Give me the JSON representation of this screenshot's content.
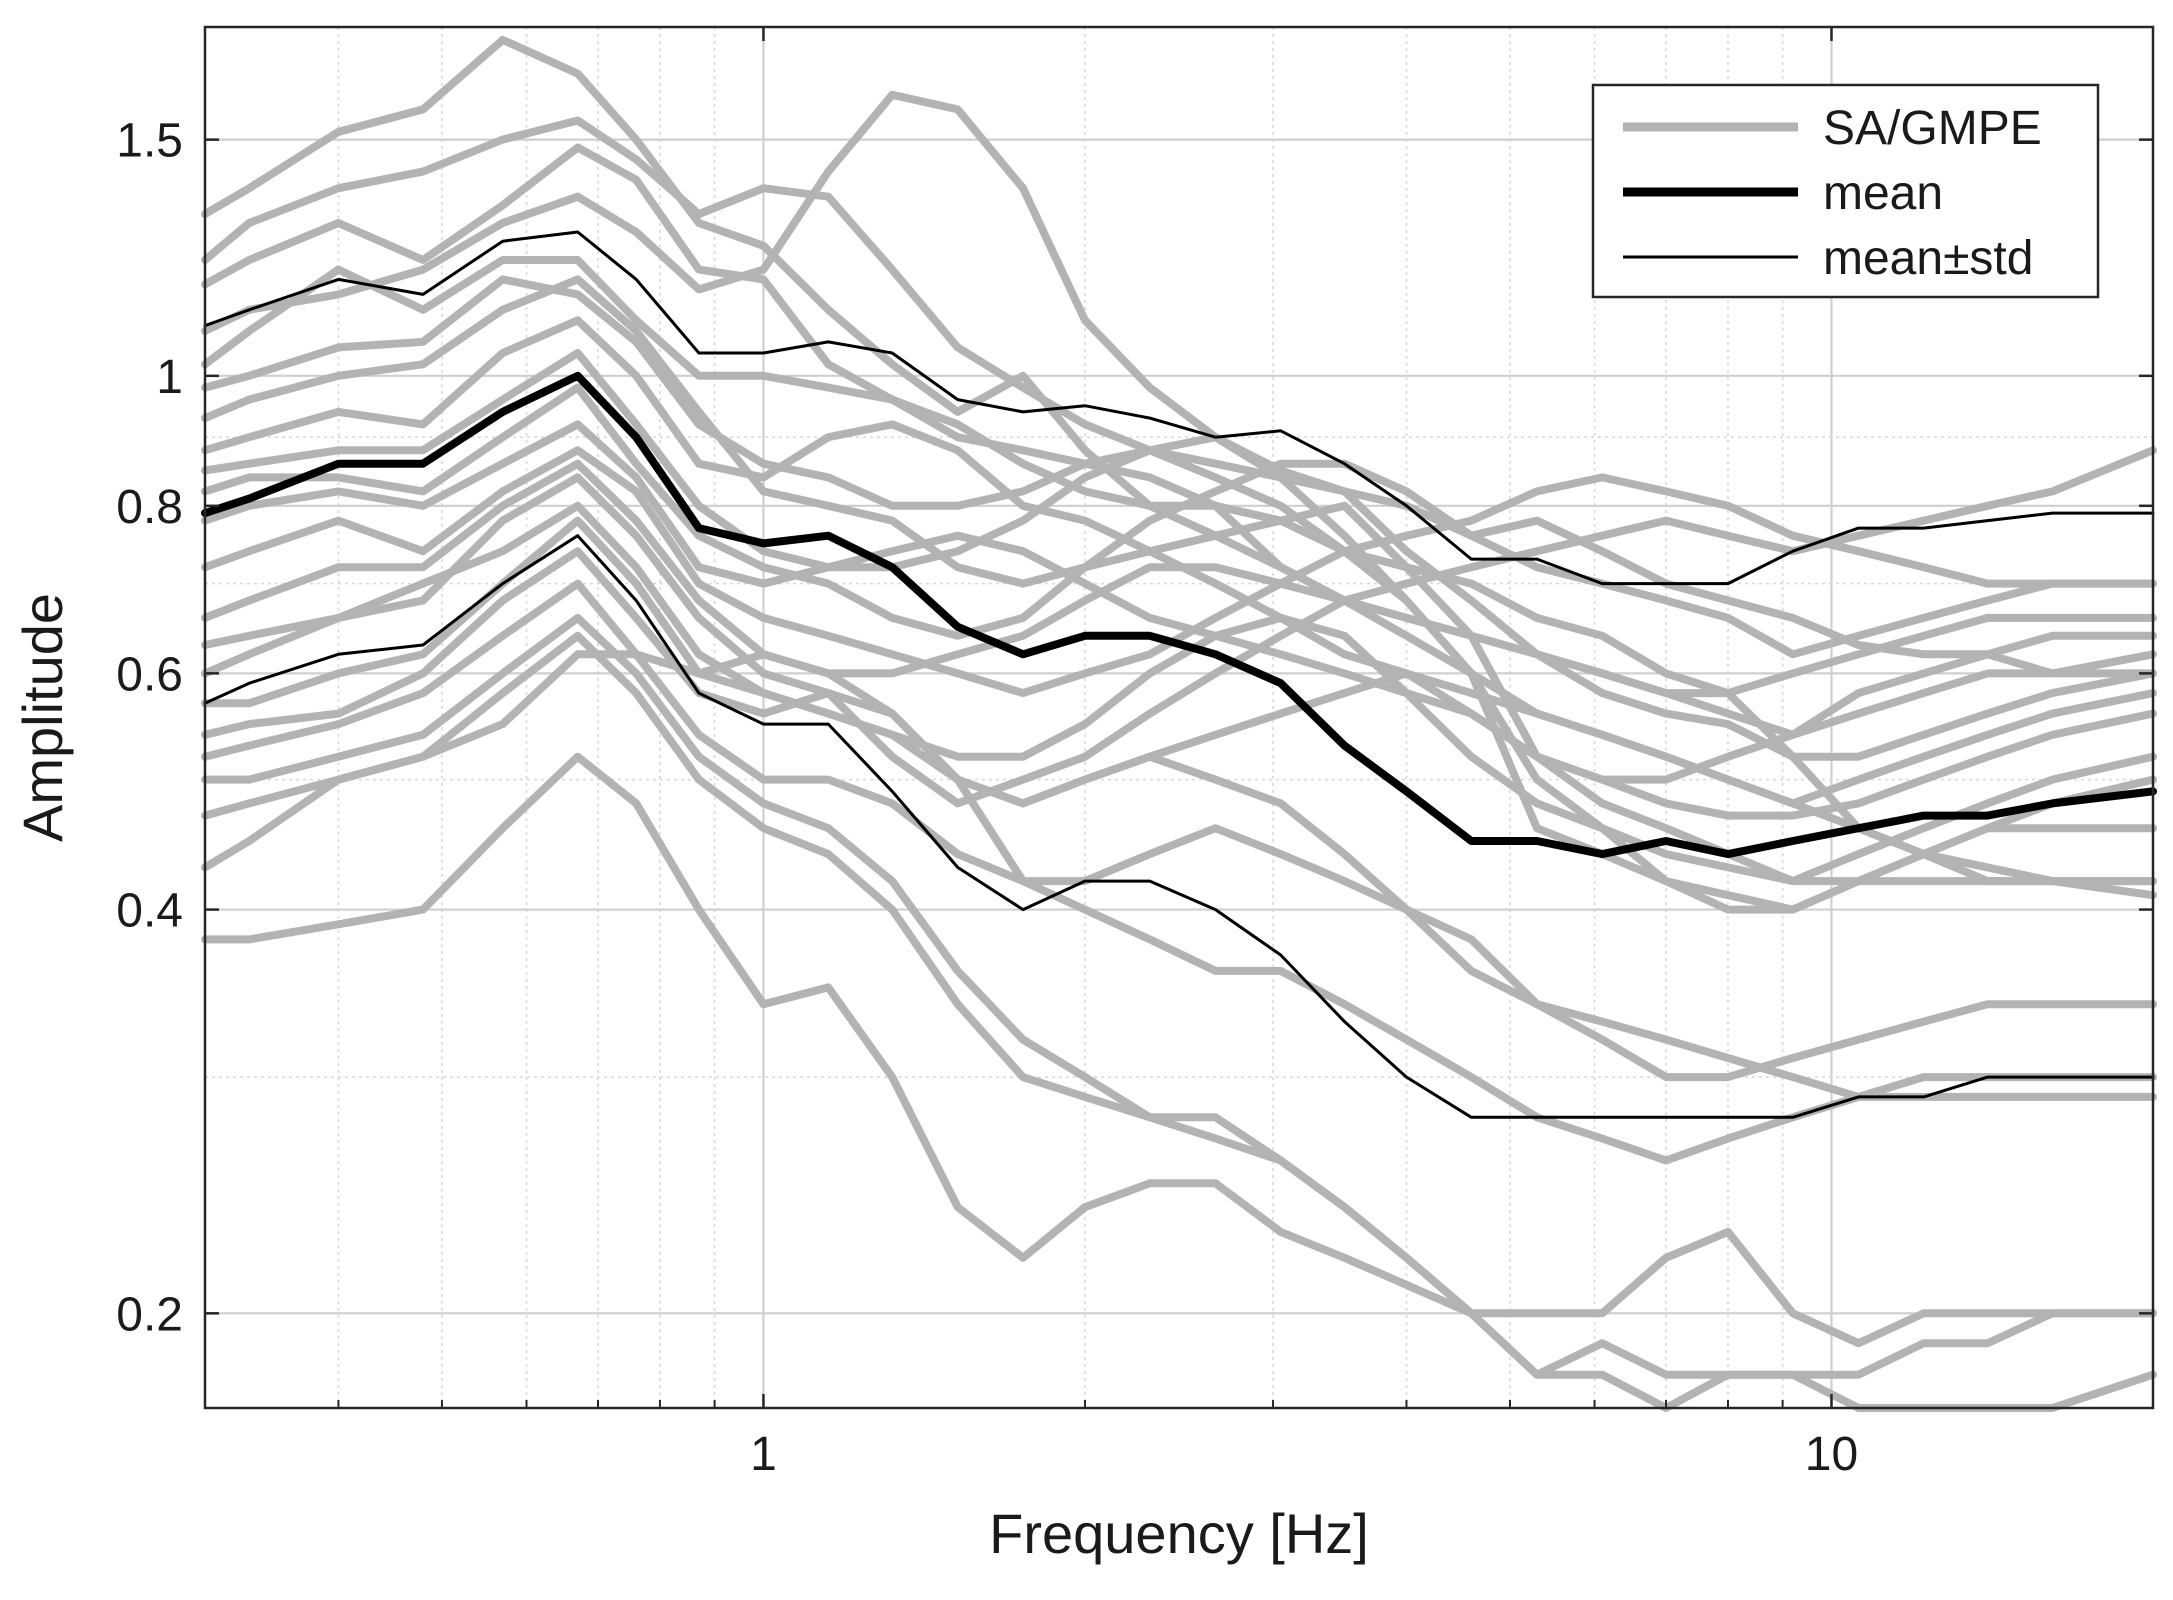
{
  "chart_data": {
    "type": "line",
    "xscale": "log",
    "yscale": "log",
    "xlabel": "Frequency [Hz]",
    "ylabel": "Amplitude",
    "xlim": [
      0.3,
      20
    ],
    "ylim": [
      0.17,
      1.82
    ],
    "grid": true,
    "legend_position": "top-right",
    "x_ticks": [
      {
        "value": 1,
        "label": "1"
      },
      {
        "value": 10,
        "label": "10"
      }
    ],
    "y_ticks": [
      {
        "value": 0.2,
        "label": "0.2"
      },
      {
        "value": 0.4,
        "label": "0.4"
      },
      {
        "value": 0.6,
        "label": "0.6"
      },
      {
        "value": 0.8,
        "label": "0.8"
      },
      {
        "value": 1,
        "label": "1"
      },
      {
        "value": 1.5,
        "label": "1.5"
      }
    ],
    "x": [
      0.3,
      0.33,
      0.4,
      0.48,
      0.57,
      0.67,
      0.76,
      0.87,
      1.0,
      1.15,
      1.32,
      1.52,
      1.75,
      2.0,
      2.3,
      2.65,
      3.05,
      3.5,
      4.0,
      4.6,
      5.3,
      6.1,
      7.0,
      8.0,
      9.2,
      10.6,
      12.2,
      14.0,
      16.1,
      20.0
    ],
    "legend": [
      {
        "name": "SA/GMPE",
        "color": "#b3b3b3",
        "style": "thick-gray"
      },
      {
        "name": "mean",
        "color": "#000000",
        "style": "thick-black"
      },
      {
        "name": "mean±std",
        "color": "#000000",
        "style": "thin-black"
      }
    ],
    "series": [
      {
        "name": "mean",
        "values": [
          0.79,
          0.81,
          0.86,
          0.86,
          0.94,
          1.0,
          0.9,
          0.77,
          0.75,
          0.76,
          0.72,
          0.65,
          0.62,
          0.64,
          0.64,
          0.62,
          0.59,
          0.53,
          0.49,
          0.45,
          0.45,
          0.44,
          0.45,
          0.44,
          0.45,
          0.46,
          0.47,
          0.47,
          0.48,
          0.49
        ]
      },
      {
        "name": "mean+std",
        "values": [
          1.09,
          1.12,
          1.18,
          1.15,
          1.26,
          1.28,
          1.18,
          1.04,
          1.04,
          1.06,
          1.04,
          0.96,
          0.94,
          0.95,
          0.93,
          0.9,
          0.91,
          0.86,
          0.8,
          0.73,
          0.73,
          0.7,
          0.7,
          0.7,
          0.74,
          0.77,
          0.77,
          0.78,
          0.79,
          0.79
        ]
      },
      {
        "name": "mean-std",
        "values": [
          0.57,
          0.59,
          0.62,
          0.63,
          0.7,
          0.76,
          0.68,
          0.58,
          0.55,
          0.55,
          0.49,
          0.43,
          0.4,
          0.42,
          0.42,
          0.4,
          0.37,
          0.33,
          0.3,
          0.28,
          0.28,
          0.28,
          0.28,
          0.28,
          0.28,
          0.29,
          0.29,
          0.3,
          0.3,
          0.3
        ]
      },
      {
        "name": "SA/GMPE 1",
        "values": [
          1.32,
          1.38,
          1.52,
          1.58,
          1.78,
          1.68,
          1.5,
          1.3,
          1.25,
          1.12,
          1.02,
          0.94,
          1.0,
          0.88,
          0.8,
          0.8,
          0.72,
          0.68,
          0.66,
          0.64,
          0.62,
          0.58,
          0.56,
          0.55,
          0.52,
          0.52,
          0.54,
          0.56,
          0.58,
          0.6
        ]
      },
      {
        "name": "SA/GMPE 2",
        "values": [
          1.22,
          1.3,
          1.38,
          1.42,
          1.5,
          1.55,
          1.45,
          1.32,
          1.38,
          1.36,
          1.2,
          1.05,
          0.98,
          0.92,
          0.88,
          0.9,
          0.85,
          0.82,
          0.8,
          0.76,
          0.78,
          0.74,
          0.7,
          0.68,
          0.66,
          0.63,
          0.62,
          0.62,
          0.6,
          0.6
        ]
      },
      {
        "name": "SA/GMPE 3",
        "values": [
          1.17,
          1.22,
          1.3,
          1.22,
          1.34,
          1.48,
          1.4,
          1.2,
          1.18,
          1.02,
          0.96,
          0.9,
          0.88,
          0.86,
          0.84,
          0.8,
          0.78,
          0.74,
          0.72,
          0.7,
          0.66,
          0.64,
          0.6,
          0.58,
          0.52,
          0.46,
          0.44,
          0.42,
          0.42,
          0.42
        ]
      },
      {
        "name": "SA/GMPE 4",
        "values": [
          1.02,
          1.08,
          1.2,
          1.12,
          1.22,
          1.22,
          1.1,
          1.0,
          1.0,
          0.98,
          0.96,
          0.92,
          0.86,
          0.82,
          0.8,
          0.76,
          0.72,
          0.68,
          0.64,
          0.6,
          0.56,
          0.54,
          0.52,
          0.5,
          0.48,
          0.5,
          0.52,
          0.54,
          0.56,
          0.58
        ]
      },
      {
        "name": "SA/GMPE 5",
        "values": [
          0.98,
          1.0,
          1.05,
          1.06,
          1.18,
          1.15,
          1.06,
          0.92,
          0.86,
          0.84,
          0.8,
          0.8,
          0.82,
          0.86,
          0.88,
          0.86,
          0.84,
          0.82,
          0.74,
          0.68,
          0.62,
          0.6,
          0.58,
          0.56,
          0.54,
          0.56,
          0.58,
          0.6,
          0.6,
          0.62
        ]
      },
      {
        "name": "SA/GMPE 6",
        "values": [
          0.93,
          0.96,
          1.0,
          1.02,
          1.12,
          1.18,
          1.08,
          0.94,
          0.82,
          0.8,
          0.78,
          0.72,
          0.7,
          0.72,
          0.74,
          0.76,
          0.78,
          0.8,
          0.72,
          0.64,
          0.52,
          0.48,
          0.46,
          0.44,
          0.42,
          0.44,
          0.46,
          0.48,
          0.5,
          0.52
        ]
      },
      {
        "name": "SA/GMPE 7",
        "values": [
          0.88,
          0.9,
          0.94,
          0.92,
          1.04,
          1.1,
          1.0,
          0.86,
          0.84,
          0.9,
          0.92,
          0.88,
          0.8,
          0.78,
          0.74,
          0.7,
          0.66,
          0.62,
          0.6,
          0.58,
          0.56,
          0.54,
          0.52,
          0.5,
          0.48,
          0.46,
          0.44,
          0.43,
          0.42,
          0.41
        ]
      },
      {
        "name": "SA/GMPE 8",
        "values": [
          0.85,
          0.86,
          0.88,
          0.88,
          0.96,
          1.04,
          0.92,
          0.8,
          0.74,
          0.72,
          0.72,
          0.74,
          0.78,
          0.84,
          0.88,
          0.84,
          0.8,
          0.74,
          0.68,
          0.6,
          0.46,
          0.44,
          0.42,
          0.41,
          0.4,
          0.42,
          0.44,
          0.46,
          0.46,
          0.46
        ]
      },
      {
        "name": "SA/GMPE 9",
        "values": [
          0.82,
          0.84,
          0.84,
          0.82,
          0.9,
          0.98,
          0.86,
          0.76,
          0.72,
          0.7,
          0.66,
          0.64,
          0.66,
          0.72,
          0.78,
          0.82,
          0.86,
          0.86,
          0.82,
          0.76,
          0.72,
          0.7,
          0.68,
          0.66,
          0.62,
          0.64,
          0.66,
          0.68,
          0.7,
          0.7
        ]
      },
      {
        "name": "SA/GMPE 10",
        "values": [
          0.78,
          0.8,
          0.82,
          0.8,
          0.86,
          0.92,
          0.84,
          0.72,
          0.7,
          0.72,
          0.74,
          0.76,
          0.74,
          0.7,
          0.66,
          0.64,
          0.62,
          0.6,
          0.58,
          0.56,
          0.52,
          0.5,
          0.5,
          0.52,
          0.54,
          0.58,
          0.6,
          0.62,
          0.64,
          0.64
        ]
      },
      {
        "name": "SA/GMPE 11",
        "values": [
          0.72,
          0.74,
          0.78,
          0.74,
          0.82,
          0.88,
          0.82,
          0.7,
          0.66,
          0.64,
          0.62,
          0.6,
          0.58,
          0.6,
          0.62,
          0.66,
          0.7,
          0.74,
          0.76,
          0.78,
          0.82,
          0.84,
          0.82,
          0.8,
          0.76,
          0.74,
          0.72,
          0.7,
          0.7,
          0.7
        ]
      },
      {
        "name": "SA/GMPE 12",
        "values": [
          0.66,
          0.68,
          0.72,
          0.72,
          0.8,
          0.86,
          0.78,
          0.68,
          0.62,
          0.6,
          0.6,
          0.62,
          0.64,
          0.68,
          0.72,
          0.72,
          0.7,
          0.68,
          0.66,
          0.64,
          0.62,
          0.6,
          0.58,
          0.58,
          0.6,
          0.62,
          0.64,
          0.66,
          0.66,
          0.66
        ]
      },
      {
        "name": "SA/GMPE 13",
        "values": [
          0.63,
          0.64,
          0.66,
          0.68,
          0.78,
          0.84,
          0.76,
          0.66,
          0.6,
          0.58,
          0.52,
          0.48,
          0.5,
          0.52,
          0.56,
          0.6,
          0.64,
          0.68,
          0.7,
          0.72,
          0.74,
          0.76,
          0.78,
          0.76,
          0.74,
          0.76,
          0.78,
          0.8,
          0.82,
          0.88
        ]
      },
      {
        "name": "SA/GMPE 14",
        "values": [
          0.6,
          0.62,
          0.66,
          0.7,
          0.74,
          0.8,
          0.72,
          0.62,
          0.58,
          0.56,
          0.54,
          0.5,
          0.48,
          0.5,
          0.52,
          0.54,
          0.56,
          0.58,
          0.6,
          0.56,
          0.52,
          0.5,
          0.48,
          0.47,
          0.47,
          0.48,
          0.5,
          0.52,
          0.54,
          0.56
        ]
      },
      {
        "name": "SA/GMPE 15",
        "values": [
          0.57,
          0.57,
          0.6,
          0.62,
          0.7,
          0.78,
          0.7,
          0.6,
          0.58,
          0.56,
          0.54,
          0.52,
          0.52,
          0.55,
          0.6,
          0.64,
          0.66,
          0.64,
          0.58,
          0.52,
          0.48,
          0.46,
          0.44,
          0.43,
          0.42,
          0.42,
          0.42,
          0.42,
          0.42,
          0.42
        ]
      },
      {
        "name": "SA/GMPE 16",
        "values": [
          0.54,
          0.55,
          0.56,
          0.6,
          0.68,
          0.74,
          0.66,
          0.58,
          0.56,
          0.58,
          0.56,
          0.5,
          0.42,
          0.4,
          0.38,
          0.36,
          0.36,
          0.34,
          0.32,
          0.3,
          0.28,
          0.27,
          0.26,
          0.27,
          0.28,
          0.29,
          0.3,
          0.3,
          0.3,
          0.3
        ]
      },
      {
        "name": "SA/GMPE 17",
        "values": [
          0.52,
          0.53,
          0.55,
          0.58,
          0.64,
          0.7,
          0.62,
          0.54,
          0.5,
          0.5,
          0.48,
          0.44,
          0.42,
          0.42,
          0.44,
          0.46,
          0.44,
          0.42,
          0.4,
          0.36,
          0.34,
          0.32,
          0.3,
          0.3,
          0.31,
          0.32,
          0.33,
          0.34,
          0.34,
          0.34
        ]
      },
      {
        "name": "SA/GMPE 18",
        "values": [
          0.5,
          0.5,
          0.52,
          0.54,
          0.6,
          0.66,
          0.6,
          0.52,
          0.48,
          0.46,
          0.42,
          0.36,
          0.32,
          0.3,
          0.28,
          0.28,
          0.26,
          0.24,
          0.22,
          0.2,
          0.18,
          0.18,
          0.17,
          0.18,
          0.18,
          0.18,
          0.19,
          0.19,
          0.2,
          0.2
        ]
      },
      {
        "name": "SA/GMPE 19",
        "values": [
          0.47,
          0.48,
          0.5,
          0.52,
          0.58,
          0.64,
          0.58,
          0.5,
          0.46,
          0.44,
          0.4,
          0.34,
          0.3,
          0.29,
          0.28,
          0.27,
          0.26,
          0.24,
          0.22,
          0.2,
          0.18,
          0.19,
          0.18,
          0.18,
          0.18,
          0.17,
          0.17,
          0.17,
          0.17,
          0.18
        ]
      },
      {
        "name": "SA/GMPE 20",
        "values": [
          0.43,
          0.45,
          0.5,
          0.52,
          0.55,
          0.62,
          0.62,
          0.6,
          0.62,
          0.6,
          0.56,
          0.5,
          0.48,
          0.5,
          0.52,
          0.5,
          0.48,
          0.44,
          0.4,
          0.38,
          0.34,
          0.33,
          0.32,
          0.31,
          0.3,
          0.29,
          0.29,
          0.29,
          0.29,
          0.29
        ]
      },
      {
        "name": "SA/GMPE 21",
        "values": [
          0.38,
          0.38,
          0.39,
          0.4,
          0.46,
          0.52,
          0.48,
          0.4,
          0.34,
          0.35,
          0.3,
          0.24,
          0.22,
          0.24,
          0.25,
          0.25,
          0.23,
          0.22,
          0.21,
          0.2,
          0.2,
          0.2,
          0.22,
          0.23,
          0.2,
          0.19,
          0.2,
          0.2,
          0.2,
          0.2
        ]
      },
      {
        "name": "SA/GMPE 22",
        "values": [
          1.08,
          1.12,
          1.15,
          1.2,
          1.3,
          1.36,
          1.28,
          1.16,
          1.2,
          1.42,
          1.62,
          1.58,
          1.38,
          1.1,
          0.98,
          0.9,
          0.84,
          0.76,
          0.68,
          0.6,
          0.5,
          0.46,
          0.42,
          0.4,
          0.4,
          0.42,
          0.44,
          0.46,
          0.48,
          0.5
        ]
      }
    ]
  }
}
